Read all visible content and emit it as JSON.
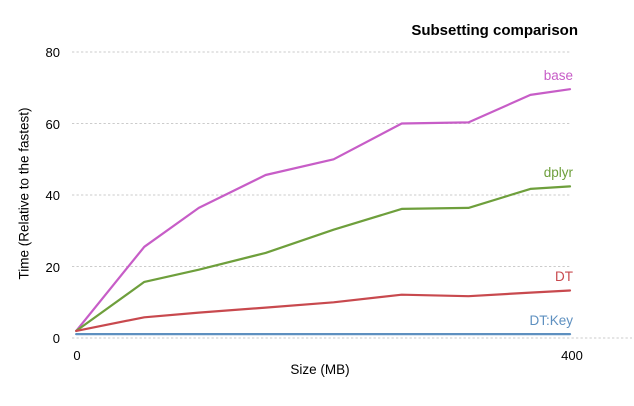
{
  "header": {
    "title": "Subsetting comparison"
  },
  "chart_data": {
    "type": "line",
    "title": "Subsetting comparison",
    "xlabel": "Size (MB)",
    "ylabel": "Time (Relative to the fastest)",
    "x": [
      1,
      56,
      100,
      154,
      209,
      264,
      318,
      368,
      400
    ],
    "series": [
      {
        "name": "base",
        "color": "#C75DC7",
        "values": [
          2.0,
          25.5,
          36.4,
          45.6,
          50.0,
          60.0,
          60.3,
          68.0,
          69.6
        ]
      },
      {
        "name": "dplyr",
        "color": "#6E9F3C",
        "values": [
          2.0,
          15.7,
          19.1,
          23.8,
          30.3,
          36.1,
          36.4,
          41.7,
          42.4
        ]
      },
      {
        "name": "DT",
        "color": "#C8494E",
        "values": [
          2.0,
          5.8,
          7.1,
          8.5,
          10.0,
          12.1,
          11.7,
          12.7,
          13.3
        ]
      },
      {
        "name": "DT:Key",
        "color": "#5E90C0",
        "values": [
          1.1,
          1.1,
          1.1,
          1.1,
          1.1,
          1.1,
          1.1,
          1.1,
          1.1
        ]
      }
    ],
    "xlim": [
      0,
      400
    ],
    "ylim": [
      0,
      80
    ],
    "x_ticks": [
      {
        "value": 0,
        "label": "0"
      },
      {
        "value": 400,
        "label": "400"
      }
    ],
    "y_ticks": [
      {
        "value": 0,
        "label": "0"
      },
      {
        "value": 20,
        "label": "20"
      },
      {
        "value": 40,
        "label": "40"
      },
      {
        "value": 60,
        "label": "60"
      },
      {
        "value": 80,
        "label": "80"
      }
    ],
    "grid": "horizontal-dashed",
    "gridline_color": "#CBCBCB",
    "legend_position": "end-of-line-labels"
  }
}
